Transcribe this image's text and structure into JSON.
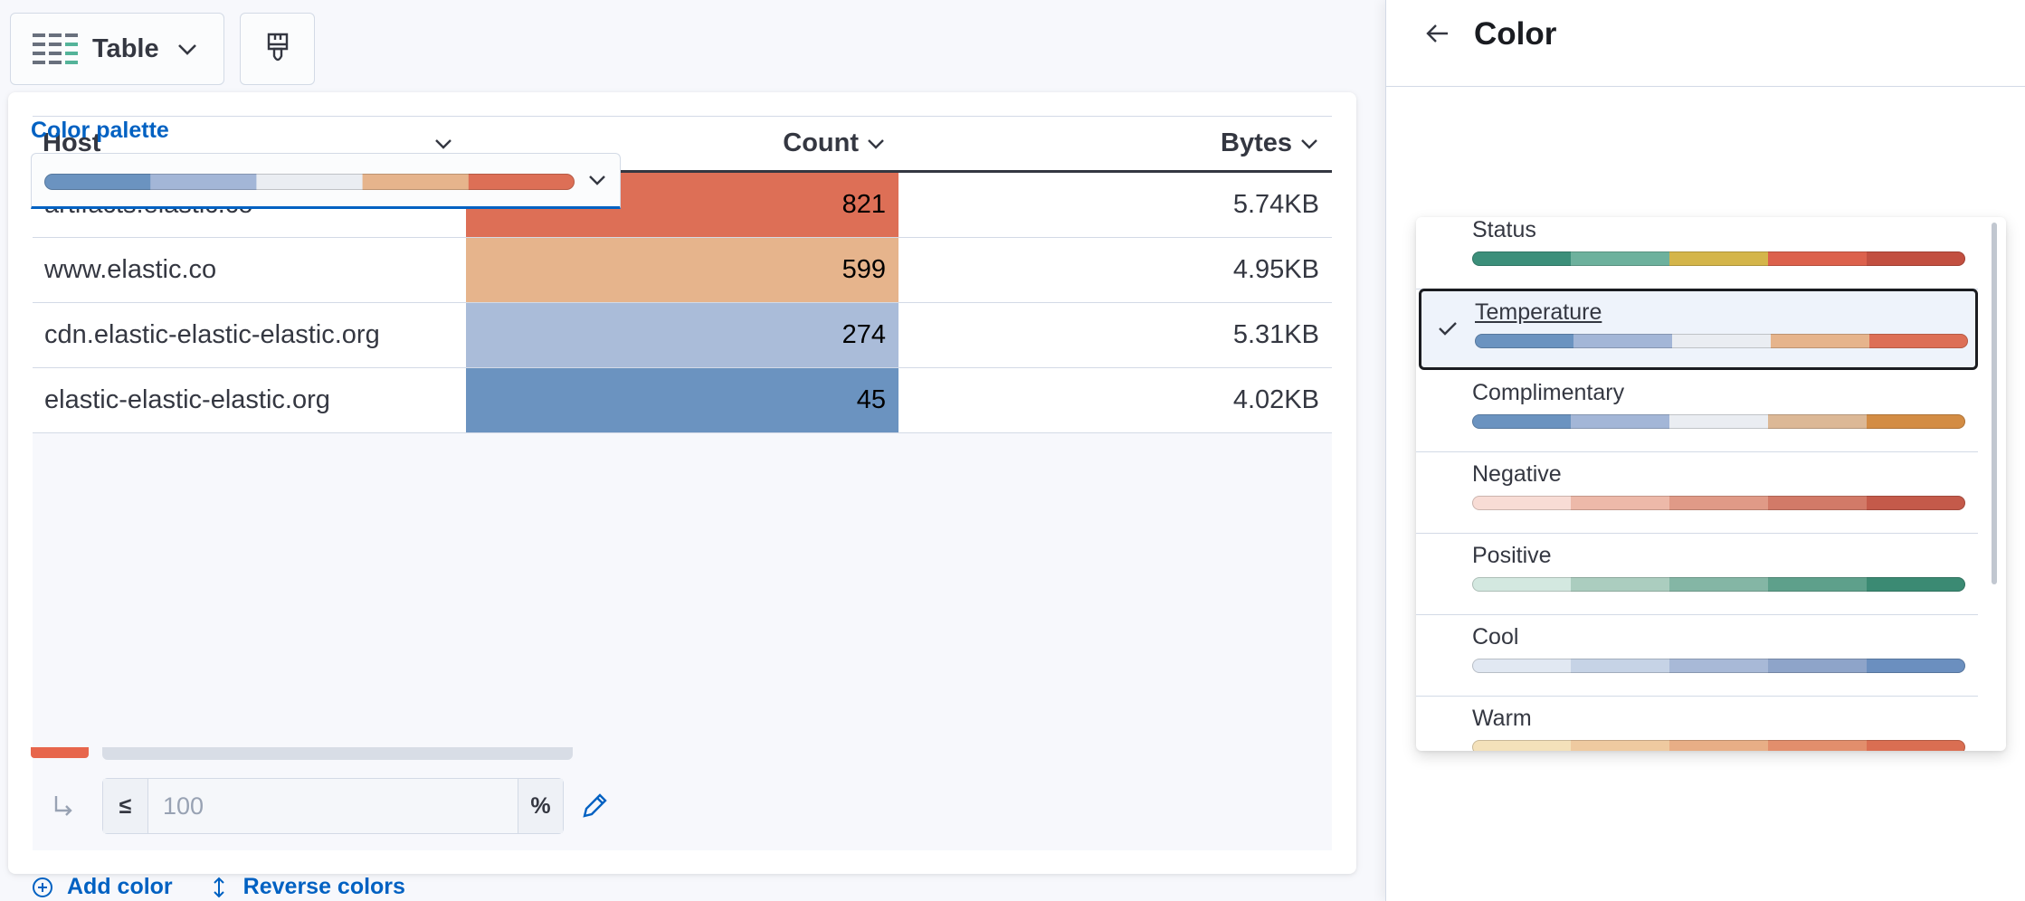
{
  "toolbar": {
    "chart_type_label": "Table",
    "chart_type_icon": "table-icon",
    "style_button_icon": "paintbrush-icon"
  },
  "table": {
    "columns": [
      {
        "label": "Host"
      },
      {
        "label": "Count"
      },
      {
        "label": "Bytes"
      }
    ],
    "rows": [
      {
        "host": "artifacts.elastic.co",
        "count": "821",
        "bytes": "5.74KB",
        "count_color": "#dd6f56"
      },
      {
        "host": "www.elastic.co",
        "count": "599",
        "bytes": "4.95KB",
        "count_color": "#e6b48c"
      },
      {
        "host": "cdn.elastic-elastic-elastic.org",
        "count": "274",
        "bytes": "5.31KB",
        "count_color": "#aabcd9"
      },
      {
        "host": "elastic-elastic-elastic.org",
        "count": "45",
        "bytes": "4.02KB",
        "count_color": "#6b93c0"
      }
    ]
  },
  "flyout": {
    "title": "Color",
    "palette_label": "Color palette",
    "selected_palette": "Temperature",
    "stop": {
      "prefix": "≤",
      "placeholder": "100",
      "suffix": "%"
    },
    "add_color_label": "Add color",
    "reverse_colors_label": "Reverse colors"
  },
  "palettes": [
    {
      "name": "Status",
      "colors": [
        "#3c8f7a",
        "#6db19d",
        "#d4b54a",
        "#dc614c",
        "#c24f40"
      ]
    },
    {
      "name": "Temperature",
      "colors": [
        "#6b93c0",
        "#a3b6d7",
        "#eaedf2",
        "#e6b48c",
        "#dd6f56"
      ]
    },
    {
      "name": "Complimentary",
      "colors": [
        "#6b93c0",
        "#a3b6d7",
        "#eaedf2",
        "#dcb896",
        "#d38c44"
      ]
    },
    {
      "name": "Negative",
      "colors": [
        "#f8dcd5",
        "#edb9a9",
        "#e09a87",
        "#d27a68",
        "#c45a4a"
      ]
    },
    {
      "name": "Positive",
      "colors": [
        "#d3e8e0",
        "#abcdbf",
        "#84b6a5",
        "#5ea08b",
        "#3b8a73"
      ]
    },
    {
      "name": "Cool",
      "colors": [
        "#e1e8f2",
        "#c6d3e6",
        "#a8b9d7",
        "#8ea4c9",
        "#6b8fbf"
      ]
    },
    {
      "name": "Warm",
      "colors": [
        "#f4e1ba",
        "#efcaa0",
        "#e8ae86",
        "#e28e6c",
        "#da6e52"
      ]
    }
  ]
}
